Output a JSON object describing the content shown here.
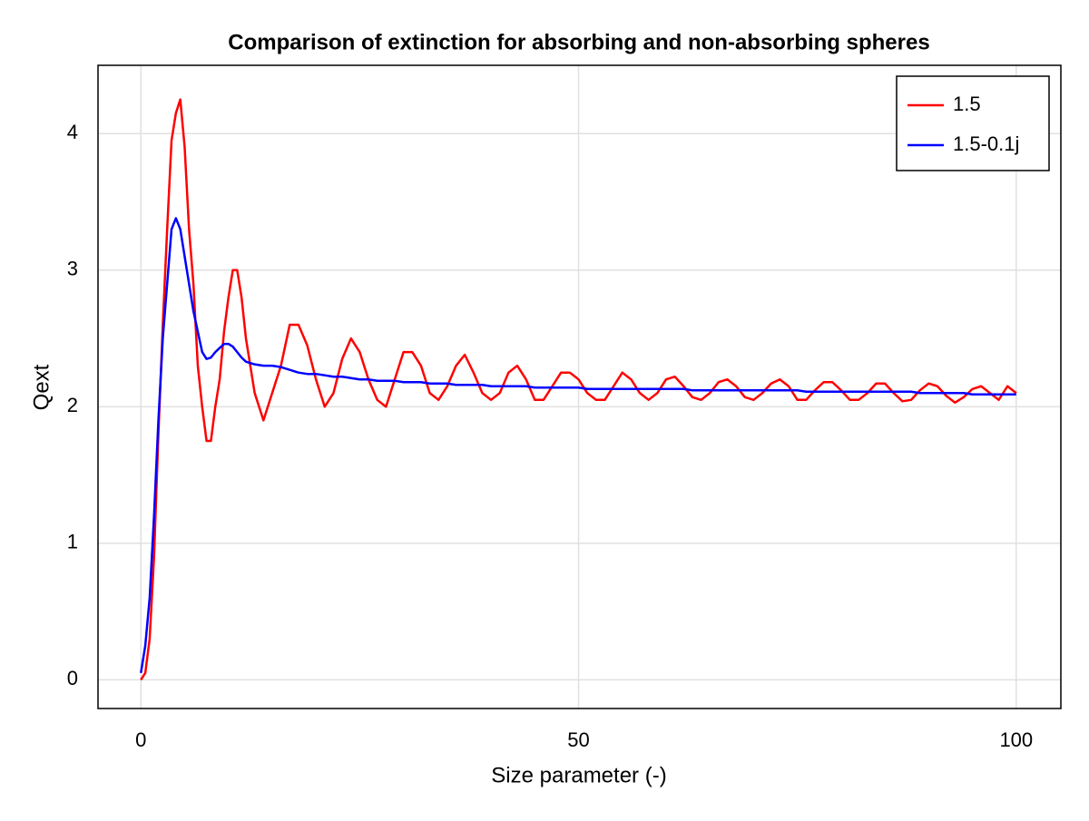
{
  "chart_data": {
    "type": "line",
    "title": "Comparison of extinction for absorbing and non-absorbing spheres",
    "x_label": "Size parameter (-)",
    "y_label": "Qext",
    "x": [
      0,
      0.5,
      1,
      1.5,
      2,
      2.5,
      3,
      3.5,
      4,
      4.5,
      5,
      5.5,
      6,
      6.5,
      7,
      7.5,
      8,
      8.5,
      9,
      9.5,
      10,
      10.5,
      11,
      11.5,
      12,
      13,
      14,
      15,
      16,
      17,
      18,
      19,
      20,
      21,
      22,
      23,
      24,
      25,
      26,
      27,
      28,
      29,
      30,
      31,
      32,
      33,
      34,
      35,
      36,
      37,
      38,
      39,
      40,
      41,
      42,
      43,
      44,
      45,
      46,
      47,
      48,
      49,
      50,
      51,
      52,
      53,
      54,
      55,
      56,
      57,
      58,
      59,
      60,
      61,
      62,
      63,
      64,
      65,
      66,
      67,
      68,
      69,
      70,
      71,
      72,
      73,
      74,
      75,
      76,
      77,
      78,
      79,
      80,
      81,
      82,
      83,
      84,
      85,
      86,
      87,
      88,
      89,
      90,
      91,
      92,
      93,
      94,
      95,
      96,
      97,
      98,
      99,
      100
    ],
    "series": [
      {
        "name": "1.5",
        "color": "#ff0000",
        "values": [
          0,
          0.05,
          0.3,
          0.9,
          1.8,
          2.6,
          3.3,
          3.95,
          4.15,
          4.25,
          3.9,
          3.3,
          2.9,
          2.3,
          2.0,
          1.75,
          1.75,
          2.0,
          2.2,
          2.55,
          2.8,
          3.0,
          3.0,
          2.8,
          2.5,
          2.1,
          1.9,
          2.1,
          2.3,
          2.6,
          2.6,
          2.45,
          2.2,
          2.0,
          2.1,
          2.35,
          2.5,
          2.4,
          2.2,
          2.05,
          2.0,
          2.2,
          2.4,
          2.4,
          2.3,
          2.1,
          2.05,
          2.15,
          2.3,
          2.38,
          2.25,
          2.1,
          2.05,
          2.1,
          2.25,
          2.3,
          2.2,
          2.05,
          2.05,
          2.15,
          2.25,
          2.25,
          2.2,
          2.1,
          2.05,
          2.05,
          2.15,
          2.25,
          2.2,
          2.1,
          2.05,
          2.1,
          2.2,
          2.22,
          2.15,
          2.07,
          2.05,
          2.1,
          2.18,
          2.2,
          2.15,
          2.07,
          2.05,
          2.1,
          2.17,
          2.2,
          2.15,
          2.05,
          2.05,
          2.12,
          2.18,
          2.18,
          2.12,
          2.05,
          2.05,
          2.1,
          2.17,
          2.17,
          2.1,
          2.04,
          2.05,
          2.12,
          2.17,
          2.15,
          2.08,
          2.03,
          2.07,
          2.13,
          2.15,
          2.1,
          2.05,
          2.15,
          2.1
        ]
      },
      {
        "name": "1.5-0.1j",
        "color": "#0000ff",
        "values": [
          0.05,
          0.25,
          0.6,
          1.2,
          1.9,
          2.5,
          2.9,
          3.3,
          3.38,
          3.3,
          3.1,
          2.9,
          2.7,
          2.55,
          2.4,
          2.35,
          2.36,
          2.4,
          2.43,
          2.46,
          2.46,
          2.44,
          2.4,
          2.36,
          2.33,
          2.31,
          2.3,
          2.3,
          2.29,
          2.27,
          2.25,
          2.24,
          2.24,
          2.23,
          2.22,
          2.22,
          2.21,
          2.2,
          2.2,
          2.19,
          2.19,
          2.19,
          2.18,
          2.18,
          2.18,
          2.17,
          2.17,
          2.17,
          2.16,
          2.16,
          2.16,
          2.16,
          2.15,
          2.15,
          2.15,
          2.15,
          2.15,
          2.14,
          2.14,
          2.14,
          2.14,
          2.14,
          2.14,
          2.13,
          2.13,
          2.13,
          2.13,
          2.13,
          2.13,
          2.13,
          2.13,
          2.13,
          2.13,
          2.13,
          2.13,
          2.12,
          2.12,
          2.12,
          2.12,
          2.12,
          2.12,
          2.12,
          2.12,
          2.12,
          2.12,
          2.12,
          2.12,
          2.12,
          2.11,
          2.11,
          2.11,
          2.11,
          2.11,
          2.11,
          2.11,
          2.11,
          2.11,
          2.11,
          2.11,
          2.11,
          2.11,
          2.1,
          2.1,
          2.1,
          2.1,
          2.1,
          2.1,
          2.09,
          2.09,
          2.09,
          2.09,
          2.09,
          2.09
        ]
      }
    ],
    "xlim": [
      -4.9,
      105.1
    ],
    "ylim": [
      -0.21,
      4.5
    ],
    "xticks": [
      0,
      50,
      100
    ],
    "yticks": [
      0,
      1,
      2,
      3,
      4
    ],
    "grid": true,
    "legend_position": "top-right"
  }
}
